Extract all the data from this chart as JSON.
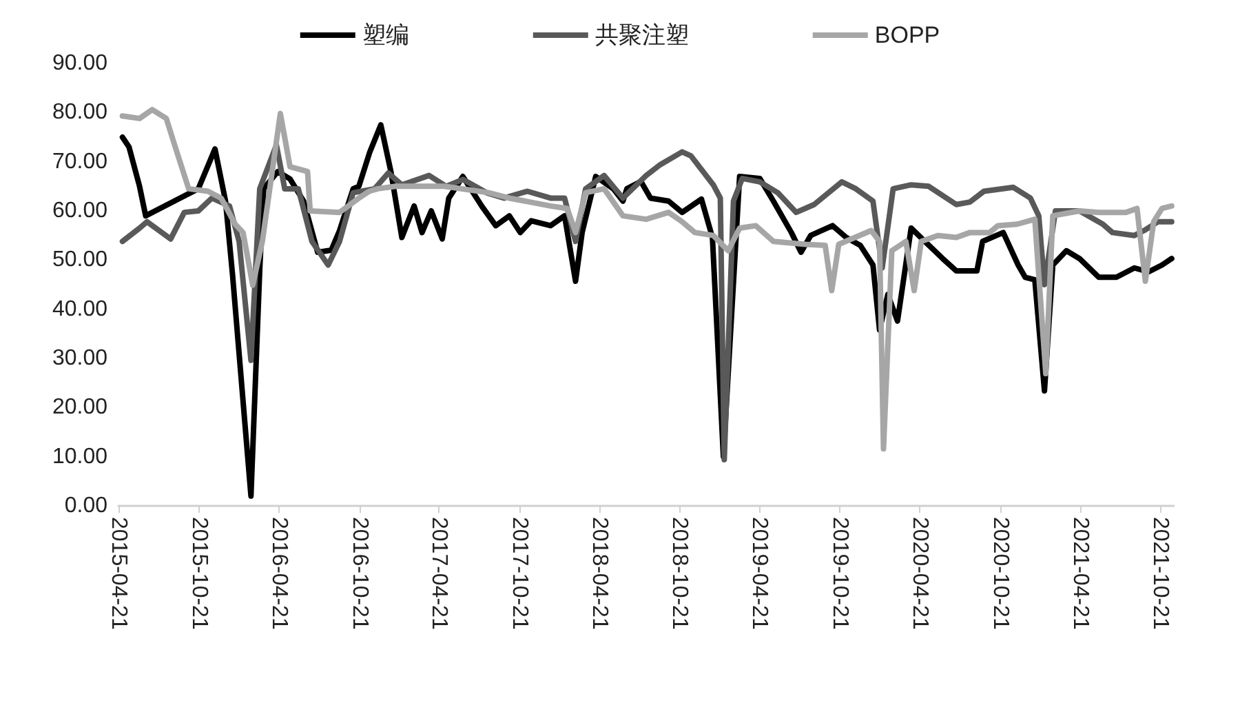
{
  "chart_data": {
    "type": "line",
    "legend": "top",
    "grid": false,
    "marker": "none",
    "line_style": "solid",
    "xlim": [
      "2015-04-21",
      "2021-11-21"
    ],
    "xticks": [
      "2015-04-21",
      "2015-10-21",
      "2016-04-21",
      "2016-10-21",
      "2017-04-21",
      "2017-10-21",
      "2018-04-21",
      "2018-10-21",
      "2019-04-21",
      "2019-10-21",
      "2020-04-21",
      "2020-10-21",
      "2021-04-21",
      "2021-10-21"
    ],
    "ylim": [
      0,
      90
    ],
    "yticks": [
      {
        "value": 0,
        "label": "0.00"
      },
      {
        "value": 10,
        "label": "10.00"
      },
      {
        "value": 20,
        "label": "20.00"
      },
      {
        "value": 30,
        "label": "30.00"
      },
      {
        "value": 40,
        "label": "40.00"
      },
      {
        "value": 50,
        "label": "50.00"
      },
      {
        "value": 60,
        "label": "60.00"
      },
      {
        "value": 70,
        "label": "70.00"
      },
      {
        "value": 80,
        "label": "80.00"
      },
      {
        "value": 90,
        "label": "90.00"
      }
    ],
    "series": [
      {
        "name": "塑编",
        "color": "#000000",
        "x": [
          "2015-04-30",
          "2015-05-15",
          "2015-06-08",
          "2015-06-22",
          "2015-10-20",
          "2015-11-27",
          "2015-12-21",
          "2016-01-06",
          "2016-02-17",
          "2016-03-08",
          "2016-03-17",
          "2016-04-18",
          "2016-05-16",
          "2016-06-16",
          "2016-07-18",
          "2016-08-18",
          "2016-09-06",
          "2016-10-07",
          "2016-10-20",
          "2016-11-14",
          "2016-12-09",
          "2017-01-01",
          "2017-01-26",
          "2017-02-23",
          "2017-03-13",
          "2017-04-03",
          "2017-04-28",
          "2017-05-13",
          "2017-06-14",
          "2017-07-27",
          "2017-08-28",
          "2017-09-28",
          "2017-10-23",
          "2017-11-17",
          "2017-12-31",
          "2018-02-01",
          "2018-02-26",
          "2018-03-13",
          "2018-04-13",
          "2018-05-23",
          "2018-06-14",
          "2018-06-23",
          "2018-07-25",
          "2018-08-16",
          "2018-09-26",
          "2018-10-27",
          "2018-12-10",
          "2019-01-04",
          "2019-01-29",
          "2019-03-07",
          "2019-04-22",
          "2019-05-23",
          "2019-07-03",
          "2019-07-25",
          "2019-08-16",
          "2019-10-05",
          "2019-11-05",
          "2019-12-07",
          "2020-01-05",
          "2020-01-20",
          "2020-02-08",
          "2020-03-01",
          "2020-04-01",
          "2020-05-02",
          "2020-06-12",
          "2020-07-13",
          "2020-08-29",
          "2020-09-11",
          "2020-10-28",
          "2020-12-01",
          "2020-12-17",
          "2021-01-08",
          "2021-01-30",
          "2021-02-18",
          "2021-03-21",
          "2021-04-20",
          "2021-06-03",
          "2021-07-13",
          "2021-08-23",
          "2021-09-24",
          "2021-10-25",
          "2021-11-16"
        ],
        "values": [
          75,
          73,
          65,
          59,
          64.5,
          72.6,
          62,
          47,
          2,
          48,
          64.5,
          68,
          66.5,
          62,
          51.6,
          52,
          56,
          64.5,
          65,
          72,
          77.5,
          68,
          54.6,
          61,
          55.6,
          60,
          54.3,
          62.6,
          67,
          61,
          57,
          59,
          55.6,
          58,
          57,
          59,
          45.7,
          55.6,
          67,
          64.5,
          62,
          64.5,
          66,
          62.6,
          62,
          59.7,
          62.4,
          54.6,
          10,
          67,
          66.6,
          62,
          55.6,
          51.6,
          55,
          57,
          54.6,
          53,
          49,
          35.8,
          43,
          37.6,
          56.5,
          53.8,
          50.3,
          47.8,
          47.8,
          53.8,
          55.6,
          49,
          46.5,
          46,
          23.4,
          49,
          51.9,
          50.3,
          46.5,
          46.5,
          48.4,
          47.6,
          49,
          50.3
        ]
      },
      {
        "name": "共聚注塑",
        "color": "#595959",
        "x": [
          "2015-04-30",
          "2015-06-08",
          "2015-06-25",
          "2015-08-18",
          "2015-09-18",
          "2015-10-20",
          "2015-11-20",
          "2015-12-30",
          "2016-01-21",
          "2016-02-17",
          "2016-03-08",
          "2016-04-15",
          "2016-05-04",
          "2016-06-04",
          "2016-07-05",
          "2016-08-11",
          "2016-09-06",
          "2016-10-07",
          "2016-11-25",
          "2016-12-26",
          "2017-01-26",
          "2017-03-29",
          "2017-05-07",
          "2017-06-14",
          "2017-08-07",
          "2017-09-16",
          "2017-11-08",
          "2017-12-31",
          "2018-02-01",
          "2018-02-26",
          "2018-03-21",
          "2018-05-02",
          "2018-06-14",
          "2018-08-06",
          "2018-09-07",
          "2018-10-27",
          "2018-11-16",
          "2019-01-06",
          "2019-01-22",
          "2019-01-31",
          "2019-02-21",
          "2019-03-13",
          "2019-04-22",
          "2019-06-02",
          "2019-07-14",
          "2019-08-24",
          "2019-10-26",
          "2019-11-27",
          "2020-01-05",
          "2020-01-26",
          "2020-02-20",
          "2020-04-01",
          "2020-05-11",
          "2020-07-13",
          "2020-08-13",
          "2020-09-14",
          "2020-11-20",
          "2020-12-29",
          "2021-01-17",
          "2021-01-30",
          "2021-02-24",
          "2021-04-20",
          "2021-06-12",
          "2021-07-04",
          "2021-08-23",
          "2021-09-14",
          "2021-10-16",
          "2021-11-16"
        ],
        "values": [
          53.8,
          56.5,
          57.8,
          54.3,
          59.7,
          60,
          62.6,
          61,
          53.8,
          29.6,
          64.5,
          73.4,
          64.5,
          64.5,
          53.8,
          49,
          53.8,
          63.7,
          64.5,
          67.7,
          65.3,
          67.2,
          65,
          66.4,
          63.7,
          62.6,
          64,
          62.6,
          62.6,
          53.8,
          64.5,
          67.2,
          62.6,
          67.2,
          69.4,
          72,
          71.2,
          65.3,
          62.6,
          9.4,
          62,
          66.6,
          65.9,
          63.7,
          59.7,
          61.3,
          65.9,
          64.5,
          62,
          48.4,
          64.5,
          65.3,
          65,
          61.3,
          61.8,
          64,
          64.8,
          62.6,
          59,
          45,
          60,
          60,
          57.3,
          55.6,
          55,
          56,
          57.8,
          57.8
        ]
      },
      {
        "name": "BOPP",
        "color": "#a6a6a6",
        "x": [
          "2015-04-30",
          "2015-06-08",
          "2015-07-07",
          "2015-08-08",
          "2015-08-27",
          "2015-09-28",
          "2015-11-11",
          "2015-12-11",
          "2016-01-12",
          "2016-01-30",
          "2016-02-21",
          "2016-03-14",
          "2016-04-24",
          "2016-05-16",
          "2016-06-25",
          "2016-07-01",
          "2016-09-06",
          "2016-10-20",
          "2016-11-13",
          "2016-12-02",
          "2017-01-12",
          "2017-05-03",
          "2017-08-12",
          "2017-09-28",
          "2017-12-31",
          "2018-02-07",
          "2018-02-26",
          "2018-03-21",
          "2018-05-02",
          "2018-06-14",
          "2018-08-06",
          "2018-09-26",
          "2018-10-27",
          "2018-11-25",
          "2019-01-06",
          "2019-02-09",
          "2019-03-07",
          "2019-04-13",
          "2019-05-23",
          "2019-08-04",
          "2019-09-18",
          "2019-10-03",
          "2019-10-19",
          "2020-01-01",
          "2020-01-20",
          "2020-01-29",
          "2020-02-17",
          "2020-03-20",
          "2020-04-08",
          "2020-04-24",
          "2020-06-01",
          "2020-07-13",
          "2020-08-13",
          "2020-09-27",
          "2020-10-16",
          "2020-11-29",
          "2021-01-08",
          "2021-02-02",
          "2021-02-18",
          "2021-04-20",
          "2021-06-03",
          "2021-08-04",
          "2021-08-29",
          "2021-09-17",
          "2021-10-06",
          "2021-10-25",
          "2021-11-16"
        ],
        "values": [
          79.3,
          78.8,
          80.6,
          78.8,
          73.4,
          64.5,
          64,
          62.6,
          57.3,
          55.6,
          44.9,
          53.8,
          79.8,
          69,
          68,
          60,
          59.7,
          62.6,
          64,
          64.5,
          65,
          65,
          63.7,
          62.6,
          61,
          60.5,
          55.6,
          63.7,
          64.5,
          59,
          58.3,
          59.7,
          57.8,
          55.6,
          55,
          51.9,
          56.5,
          57,
          53.8,
          53.2,
          53,
          43.8,
          53.2,
          56,
          53.8,
          11.6,
          51.9,
          53.8,
          43.8,
          53.8,
          55,
          54.6,
          55.6,
          55.6,
          57,
          57.3,
          58.3,
          26.9,
          59,
          60,
          59.7,
          59.7,
          60.5,
          45.7,
          57.8,
          60.5,
          61
        ]
      }
    ]
  }
}
